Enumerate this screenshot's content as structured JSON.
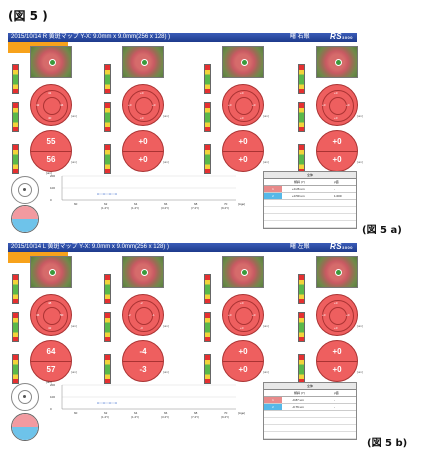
{
  "figure_title": "(図 5 )",
  "caption_a": "(図 5 a)",
  "caption_b": "(図 5 b)",
  "panels": [
    {
      "id": "a",
      "title": "2015/10/14 R 黄斑マップ Y-X: 9.0mm x 9.0mm(256 x 128) )",
      "patient": "曙 右眼",
      "brand": "RS",
      "brand_sub": "3000",
      "columns": [
        {
          "top": "55",
          "bottom": "56",
          "segs": [
            "41",
            "44",
            "40",
            "42"
          ]
        },
        {
          "top": "+0",
          "bottom": "+0",
          "segs": [
            "+0",
            "+0",
            "+0",
            "+0"
          ]
        },
        {
          "top": "+0",
          "bottom": "+0",
          "segs": [
            "+0",
            "+0",
            "+0",
            "+0"
          ]
        },
        {
          "top": "+0",
          "bottom": "+0",
          "segs": [
            "+0",
            "+0",
            "+0",
            "+0"
          ]
        }
      ],
      "unit": "[um]",
      "chart_y_labels": [
        "200",
        "100",
        "0"
      ],
      "chart_x_labels": [
        "60",
        "62",
        "64",
        "66",
        "68",
        "70"
      ],
      "chart_x_sub": [
        "",
        "(1.2Y)",
        "(1.2Y)",
        "(3.2Y)",
        "(7.2Y)",
        "(9.2Y)"
      ],
      "chart_x_unit": "[Age]",
      "table": {
        "header": "全体",
        "cols": [
          "傾斜 (Y)",
          "p値"
        ],
        "rows": [
          {
            "idx": "1",
            "color": "#e88a8a",
            "slope": "+0.26 um",
            "p": "-"
          },
          {
            "idx": "2",
            "color": "#55b8e8",
            "slope": "+0.50 um",
            "p": "1.000"
          }
        ]
      },
      "pie_up": "#f29aa0",
      "pie_dn": "#6ec3ea"
    },
    {
      "id": "b",
      "title": "2015/10/14 L 黄斑マップ Y-X: 9.0mm x 9.0mm(256 x 128) )",
      "patient": "曙 左眼",
      "brand": "RS",
      "brand_sub": "3000",
      "columns": [
        {
          "top": "64",
          "bottom": "57",
          "segs": [
            "48",
            "50",
            "42",
            "46"
          ]
        },
        {
          "top": "-4",
          "bottom": "-3",
          "segs": [
            "-2",
            "-1",
            "-3",
            "-2"
          ]
        },
        {
          "top": "+0",
          "bottom": "+0",
          "segs": [
            "+0",
            "+0",
            "+0",
            "+0"
          ]
        },
        {
          "top": "+0",
          "bottom": "+0",
          "segs": [
            "+0",
            "+0",
            "+0",
            "+0"
          ]
        }
      ],
      "unit": "[um]",
      "chart_y_labels": [
        "200",
        "100",
        "0"
      ],
      "chart_x_labels": [
        "60",
        "62",
        "64",
        "66",
        "68",
        "70"
      ],
      "chart_x_sub": [
        "",
        "(1.2Y)",
        "(1.2Y)",
        "(3.2Y)",
        "(7.2Y)",
        "(9.2Y)"
      ],
      "chart_x_unit": "[Age]",
      "table": {
        "header": "全体",
        "cols": [
          "傾斜 (Y)",
          "p値"
        ],
        "rows": [
          {
            "idx": "1",
            "color": "#e88a8a",
            "slope": "-0.87 um",
            "p": "-"
          },
          {
            "idx": "2",
            "color": "#55b8e8",
            "slope": "-0.76 um",
            "p": "-"
          }
        ]
      },
      "pie_up": "#f29aa0",
      "pie_dn": "#6ec3ea"
    }
  ]
}
